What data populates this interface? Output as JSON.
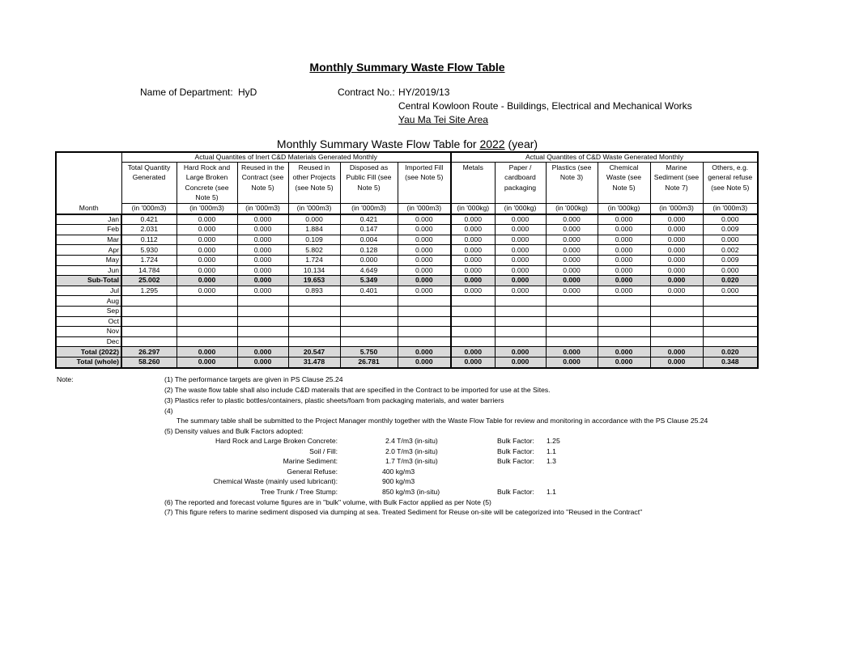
{
  "title": "Monthly Summary Waste Flow Table",
  "department_label": "Name of Department:",
  "department": "HyD",
  "contract_label": "Contract No.:",
  "contract_no": "HY/2019/13",
  "contract_desc": "Central Kowloon Route - Buildings, Electrical and Mechanical Works",
  "site": "Yau Ma Tei Site Area",
  "table_title_prefix": "Monthly Summary Waste Flow Table for ",
  "table_year": "2022",
  "table_title_suffix": " (year)",
  "groups": {
    "inert": "Actual Quantites of Inert C&D Materials Generated Monthly",
    "waste": "Actual Quantites of C&D Waste Generated Monthly"
  },
  "month_header": "Month",
  "columns": [
    {
      "label": "Total Quantity Generated",
      "unit": "(in '000m3)"
    },
    {
      "label": "Hard Rock and Large Broken Concrete (see Note 5)",
      "unit": "(in '000m3)"
    },
    {
      "label": "Reused in the Contract (see Note 5)",
      "unit": "(in '000m3)"
    },
    {
      "label": "Reused in other Projects (see Note 5)",
      "unit": "(in '000m3)"
    },
    {
      "label": "Disposed as Public Fill (see Note 5)",
      "unit": "(in '000m3)"
    },
    {
      "label": "Imported Fill (see Note 5)",
      "unit": "(in '000m3)"
    },
    {
      "label": "Metals",
      "unit": "(in '000kg)"
    },
    {
      "label": "Paper / cardboard packaging",
      "unit": "(in '000kg)"
    },
    {
      "label": "Plastics (see Note 3)",
      "unit": "(in '000kg)"
    },
    {
      "label": "Chemical Waste (see Note 5)",
      "unit": "(in '000kg)"
    },
    {
      "label": "Marine Sediment (see Note 7)",
      "unit": "(in '000m3)"
    },
    {
      "label": "Others, e.g. general refuse (see Note 5)",
      "unit": "(in '000m3)"
    }
  ],
  "rows": [
    {
      "month": "Jan",
      "values": [
        "0.421",
        "0.000",
        "0.000",
        "0.000",
        "0.421",
        "0.000",
        "0.000",
        "0.000",
        "0.000",
        "0.000",
        "0.000",
        "0.000"
      ]
    },
    {
      "month": "Feb",
      "values": [
        "2.031",
        "0.000",
        "0.000",
        "1.884",
        "0.147",
        "0.000",
        "0.000",
        "0.000",
        "0.000",
        "0.000",
        "0.000",
        "0.009"
      ]
    },
    {
      "month": "Mar",
      "values": [
        "0.112",
        "0.000",
        "0.000",
        "0.109",
        "0.004",
        "0.000",
        "0.000",
        "0.000",
        "0.000",
        "0.000",
        "0.000",
        "0.000"
      ]
    },
    {
      "month": "Apr",
      "values": [
        "5.930",
        "0.000",
        "0.000",
        "5.802",
        "0.128",
        "0.000",
        "0.000",
        "0.000",
        "0.000",
        "0.000",
        "0.000",
        "0.002"
      ]
    },
    {
      "month": "May",
      "values": [
        "1.724",
        "0.000",
        "0.000",
        "1.724",
        "0.000",
        "0.000",
        "0.000",
        "0.000",
        "0.000",
        "0.000",
        "0.000",
        "0.009"
      ]
    },
    {
      "month": "Jun",
      "values": [
        "14.784",
        "0.000",
        "0.000",
        "10.134",
        "4.649",
        "0.000",
        "0.000",
        "0.000",
        "0.000",
        "0.000",
        "0.000",
        "0.000"
      ]
    },
    {
      "month": "Sub-Total",
      "bold": true,
      "values": [
        "25.002",
        "0.000",
        "0.000",
        "19.653",
        "5.349",
        "0.000",
        "0.000",
        "0.000",
        "0.000",
        "0.000",
        "0.000",
        "0.020"
      ]
    },
    {
      "month": "Jul",
      "values": [
        "1.295",
        "0.000",
        "0.000",
        "0.893",
        "0.401",
        "0.000",
        "0.000",
        "0.000",
        "0.000",
        "0.000",
        "0.000",
        "0.000"
      ]
    },
    {
      "month": "Aug",
      "values": [
        "",
        "",
        "",
        "",
        "",
        "",
        "",
        "",
        "",
        "",
        "",
        ""
      ]
    },
    {
      "month": "Sep",
      "values": [
        "",
        "",
        "",
        "",
        "",
        "",
        "",
        "",
        "",
        "",
        "",
        ""
      ]
    },
    {
      "month": "Oct",
      "values": [
        "",
        "",
        "",
        "",
        "",
        "",
        "",
        "",
        "",
        "",
        "",
        ""
      ]
    },
    {
      "month": "Nov",
      "values": [
        "",
        "",
        "",
        "",
        "",
        "",
        "",
        "",
        "",
        "",
        "",
        ""
      ]
    },
    {
      "month": "Dec",
      "values": [
        "",
        "",
        "",
        "",
        "",
        "",
        "",
        "",
        "",
        "",
        "",
        ""
      ]
    },
    {
      "month": "Total (2022)",
      "bold": true,
      "values": [
        "26.297",
        "0.000",
        "0.000",
        "20.547",
        "5.750",
        "0.000",
        "0.000",
        "0.000",
        "0.000",
        "0.000",
        "0.000",
        "0.020"
      ]
    },
    {
      "month": "Total (whole)",
      "bold": true,
      "values": [
        "58.260",
        "0.000",
        "0.000",
        "31.478",
        "26.781",
        "0.000",
        "0.000",
        "0.000",
        "0.000",
        "0.000",
        "0.000",
        "0.348"
      ]
    }
  ],
  "notes": {
    "label": "Note:",
    "n1": "(1)  The performance targets are given in PS Clause 25.24",
    "n2": "(2)  The waste flow table shall also include C&D materails that are specified in the Contract to be imported for use at the Sites.",
    "n3": "(3)  Plastics refer to plastic bottles/containers, plastic sheets/foam from packaging materials, and water barriers",
    "n4": "(4)",
    "n4_text": "The summary table shall be submitted to the Project Manager monthly together with the Waste Flow Table for review and monitoring in accordance with the PS Clause 25.24",
    "n5": "(5)  Density values and Bulk Factors adopted:",
    "densities": [
      {
        "label": "Hard Rock and Large Broken Concrete:",
        "value": "2.4  T/m3 (in-situ)",
        "bulk_label": "Bulk Factor:",
        "bulk": "1.25"
      },
      {
        "label": "Soil / Fill:",
        "value": "2.0  T/m3 (in-situ)",
        "bulk_label": "Bulk Factor:",
        "bulk": "1.1"
      },
      {
        "label": "Marine Sediment:",
        "value": "1.7  T/m3 (in-situ)",
        "bulk_label": "Bulk Factor:",
        "bulk": "1.3"
      },
      {
        "label": "General Refuse:",
        "value": "400  kg/m3",
        "bulk_label": "",
        "bulk": ""
      },
      {
        "label": "Chemical Waste (mainly used lubricant):",
        "value": "900  kg/m3",
        "bulk_label": "",
        "bulk": ""
      },
      {
        "label": "Tree Trunk / Tree Stump:",
        "value": "850  kg/m3 (in-situ)",
        "bulk_label": "Bulk Factor:",
        "bulk": "1.1"
      }
    ],
    "n6": "(6)  The reported and forecast volume figures are in \"bulk\" volume, with Bulk Factor applied as per Note (5)",
    "n7": "(7)  This figure refers to marine sediment disposed via dumping at sea. Treated Sediment for Reuse on-site will be categorized into \"Reused in the Contract\""
  }
}
